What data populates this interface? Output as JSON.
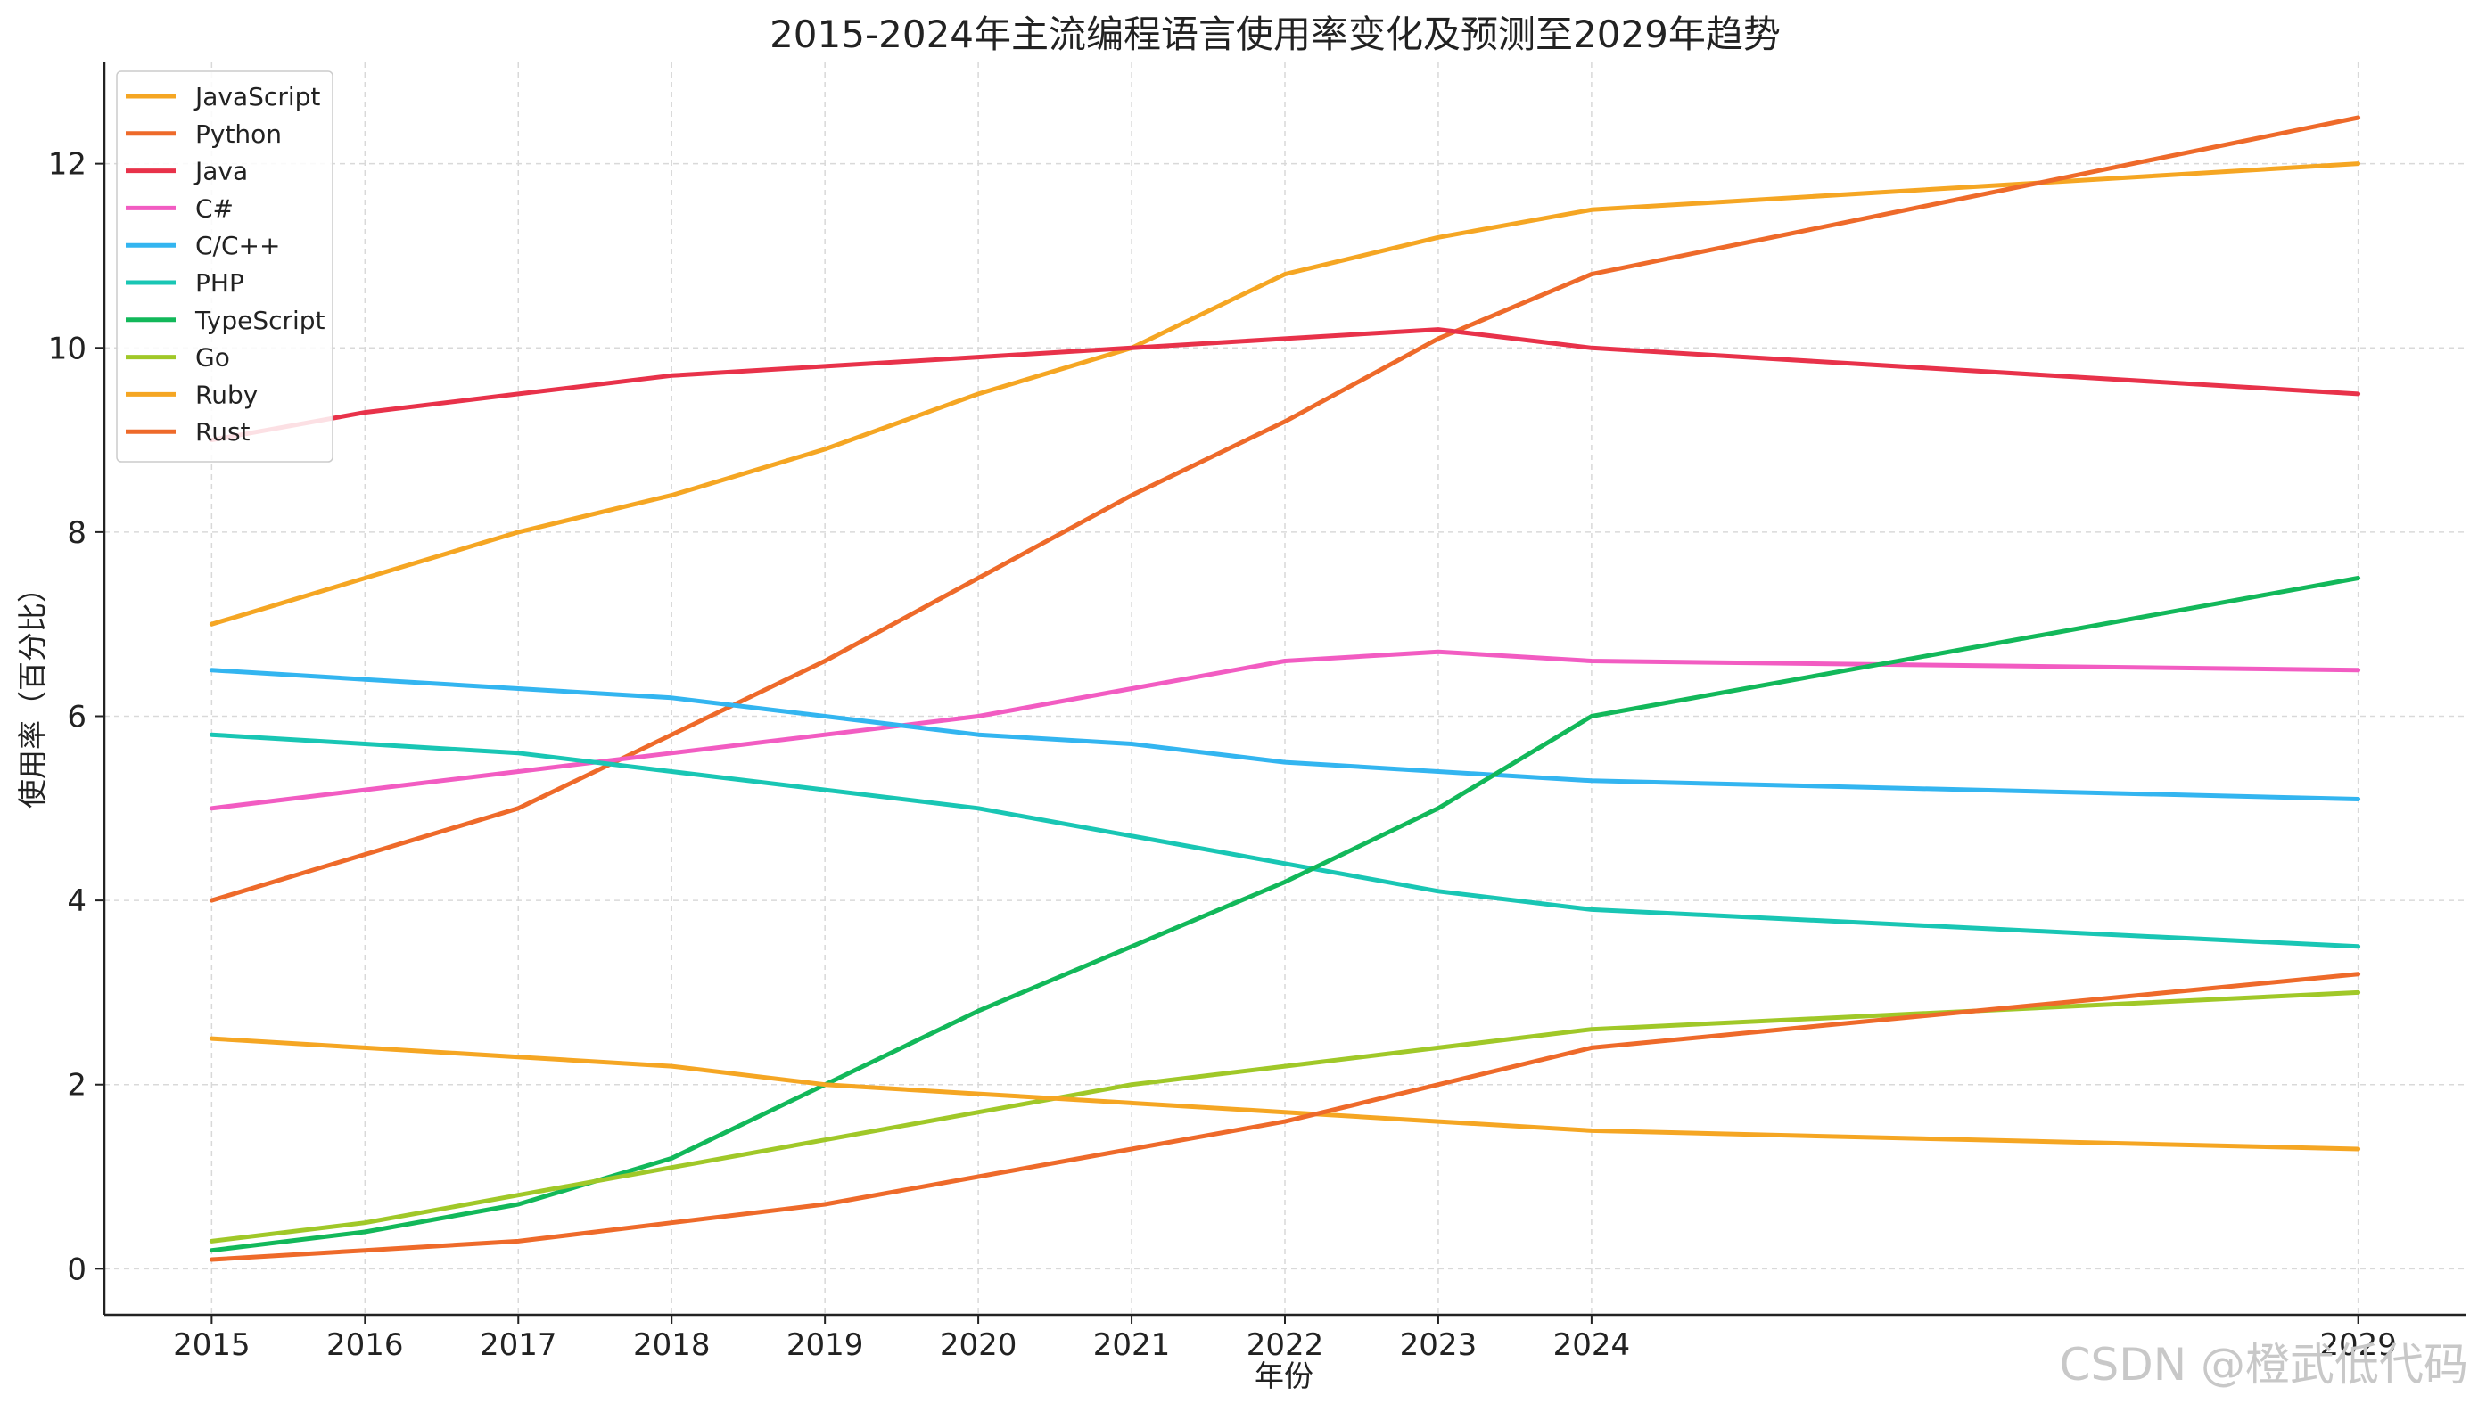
{
  "title": "2015-2024年主流编程语言使用率变化及预测至2029年趋势",
  "watermark": "CSDN @橙武低代码",
  "chart_data": {
    "type": "line",
    "title": "2015-2024年主流编程语言使用率变化及预测至2029年趋势",
    "xlabel": "年份",
    "ylabel": "使用率（百分比）",
    "x": [
      2015,
      2016,
      2017,
      2018,
      2019,
      2020,
      2021,
      2022,
      2023,
      2024,
      2029
    ],
    "x_ticks": [
      "2015",
      "2016",
      "2017",
      "2018",
      "2019",
      "2020",
      "2021",
      "2022",
      "2023",
      "2024",
      "2029"
    ],
    "xlim": [
      2014.3,
      2029.7
    ],
    "y_ticks": [
      "0",
      "2",
      "4",
      "6",
      "8",
      "10",
      "12"
    ],
    "ylim": [
      -0.5,
      13.1
    ],
    "grid": true,
    "legend_position": "top-left",
    "series": [
      {
        "name": "JavaScript",
        "color": "#f5a623",
        "values": [
          7.0,
          7.5,
          8.0,
          8.4,
          8.9,
          9.5,
          10.0,
          10.8,
          11.2,
          11.5,
          12.0
        ]
      },
      {
        "name": "Python",
        "color": "#ee6a2a",
        "values": [
          4.0,
          4.5,
          5.0,
          5.8,
          6.6,
          7.5,
          8.4,
          9.2,
          10.1,
          10.8,
          12.5
        ]
      },
      {
        "name": "Java",
        "color": "#e8324a",
        "values": [
          9.0,
          9.3,
          9.5,
          9.7,
          9.8,
          9.9,
          10.0,
          10.1,
          10.2,
          10.0,
          9.5
        ]
      },
      {
        "name": "C#",
        "color": "#f25cc2",
        "values": [
          5.0,
          5.2,
          5.4,
          5.6,
          5.8,
          6.0,
          6.3,
          6.6,
          6.7,
          6.6,
          6.5
        ]
      },
      {
        "name": "C/C++",
        "color": "#33b5f0",
        "values": [
          6.5,
          6.4,
          6.3,
          6.2,
          6.0,
          5.8,
          5.7,
          5.5,
          5.4,
          5.3,
          5.1
        ]
      },
      {
        "name": "PHP",
        "color": "#19c6b4",
        "values": [
          5.8,
          5.7,
          5.6,
          5.4,
          5.2,
          5.0,
          4.7,
          4.4,
          4.1,
          3.9,
          3.5
        ]
      },
      {
        "name": "TypeScript",
        "color": "#12b85a",
        "values": [
          0.2,
          0.4,
          0.7,
          1.2,
          2.0,
          2.8,
          3.5,
          4.2,
          5.0,
          6.0,
          7.5
        ]
      },
      {
        "name": "Go",
        "color": "#a0c828",
        "values": [
          0.3,
          0.5,
          0.8,
          1.1,
          1.4,
          1.7,
          2.0,
          2.2,
          2.4,
          2.6,
          3.0
        ]
      },
      {
        "name": "Ruby",
        "color": "#f5a623",
        "values": [
          2.5,
          2.4,
          2.3,
          2.2,
          2.0,
          1.9,
          1.8,
          1.7,
          1.6,
          1.5,
          1.3
        ]
      },
      {
        "name": "Rust",
        "color": "#ee6a2a",
        "values": [
          0.1,
          0.2,
          0.3,
          0.5,
          0.7,
          1.0,
          1.3,
          1.6,
          2.0,
          2.4,
          3.2
        ]
      }
    ]
  }
}
